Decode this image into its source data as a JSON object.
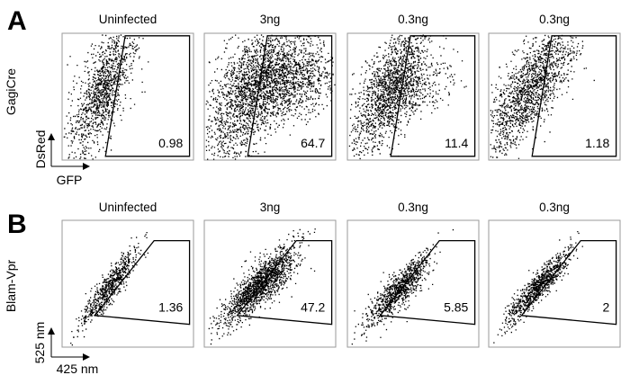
{
  "chart_data": {
    "type": "scatter",
    "description_free": true,
    "panels": [
      {
        "label": "A",
        "row_label": "GagiCre",
        "x_axis_label": "GFP",
        "y_axis_label": "DsRed",
        "plots": [
          {
            "title": "Uninfected",
            "gate_value": "0.98"
          },
          {
            "title": "3ng",
            "gate_value": "64.7"
          },
          {
            "title": "0.3ng",
            "gate_value": "11.4"
          },
          {
            "title": "0.3ng",
            "gate_value": "1.18"
          }
        ]
      },
      {
        "label": "B",
        "row_label": "Blam-Vpr",
        "x_axis_label": "425 nm",
        "y_axis_label": "525 nm",
        "plots": [
          {
            "title": "Uninfected",
            "gate_value": "1.36"
          },
          {
            "title": "3ng",
            "gate_value": "47.2"
          },
          {
            "title": "0.3ng",
            "gate_value": "5.85"
          },
          {
            "title": "0.3ng",
            "gate_value": "2"
          }
        ]
      }
    ]
  },
  "colors": {
    "dots": "#000000",
    "gate": "#000000",
    "frame": "#9a9a9a"
  }
}
